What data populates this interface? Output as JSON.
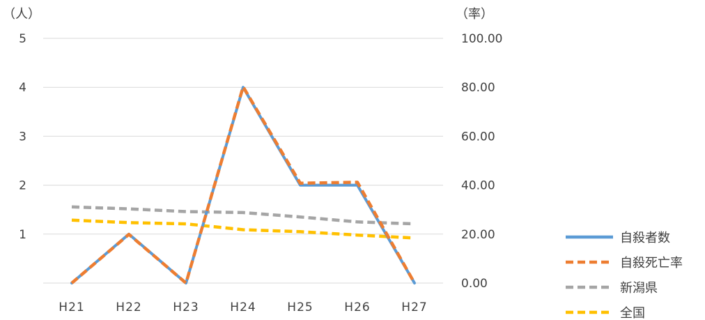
{
  "chart_data": {
    "type": "line",
    "left_axis_unit": "（人）",
    "right_axis_unit": "（率）",
    "categories": [
      "H21",
      "H22",
      "H23",
      "H24",
      "H25",
      "H26",
      "H27"
    ],
    "left_axis": {
      "min": 0,
      "max": 5,
      "tick_labels": [
        "",
        "1",
        "2",
        "3",
        "4",
        "5"
      ]
    },
    "right_axis": {
      "min": 0,
      "max": 100,
      "tick_labels": [
        "0.00",
        "20.00",
        "40.00",
        "60.00",
        "80.00",
        "100.00"
      ]
    },
    "grid": true,
    "legend_position": "bottom-right",
    "series": [
      {
        "name": "自殺者数",
        "axis": "left",
        "values": [
          0,
          1,
          0,
          4,
          2,
          2,
          0
        ],
        "color": "#5B9BD5",
        "dash": "solid"
      },
      {
        "name": "自殺死亡率",
        "axis": "right",
        "values": [
          0,
          19.9,
          0,
          80.2,
          40.8,
          41.2,
          0
        ],
        "color": "#ED7D31",
        "dash": "dashed"
      },
      {
        "name": "新潟県",
        "axis": "right",
        "values": [
          31.1,
          30.3,
          29.2,
          28.8,
          27.0,
          25.0,
          24.2
        ],
        "color": "#A5A5A5",
        "dash": "dashed"
      },
      {
        "name": "全国",
        "axis": "right",
        "values": [
          25.7,
          24.7,
          24.2,
          21.8,
          21.0,
          19.6,
          18.4
        ],
        "color": "#FFC000",
        "dash": "dashed"
      }
    ]
  }
}
